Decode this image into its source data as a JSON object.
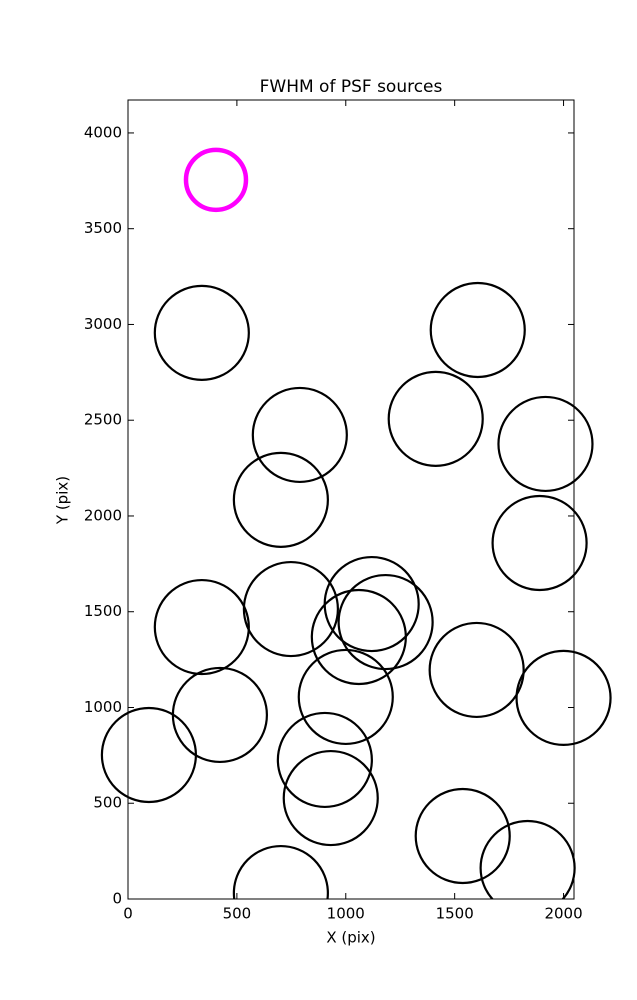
{
  "chart_data": {
    "type": "scatter",
    "title": "FWHM of PSF sources",
    "x_label": "X (pix)",
    "y_label": "Y (pix)",
    "series": [
      {
        "color": "#000000",
        "x": [
          339,
          1606,
          789,
          1413,
          1917,
          702,
          1890,
          339,
          748,
          1119,
          1183,
          1060,
          1601,
          2000,
          1000,
          422,
          96,
          904,
          931,
          1537,
          1835,
          702
        ],
        "values": [
          2956,
          2971,
          2423,
          2507,
          2376,
          2084,
          1859,
          1420,
          1514,
          1540,
          1446,
          1368,
          1196,
          1050,
          1055,
          961,
          752,
          726,
          527,
          329,
          162,
          31
        ]
      },
      {
        "color": "#ff00ff",
        "x": [
          404
        ],
        "values": [
          3755
        ]
      }
    ],
    "xlim": [
      0,
      2048
    ],
    "ylim": [
      0,
      4172
    ],
    "xticks": [
      0,
      500,
      1000,
      1500,
      2000
    ],
    "yticks": [
      0,
      500,
      1000,
      1500,
      2000,
      2500,
      3000,
      3500,
      4000
    ]
  }
}
